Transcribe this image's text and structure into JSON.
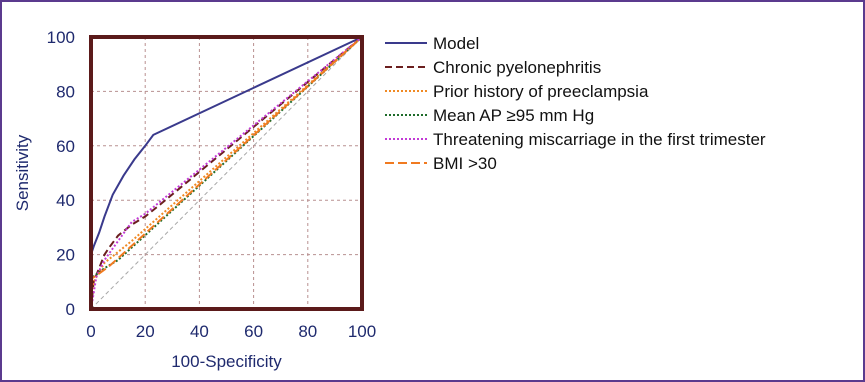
{
  "chart_data": {
    "type": "line",
    "title": "",
    "xlabel": "100-Specificity",
    "ylabel": "Sensitivity",
    "xlim": [
      0,
      100
    ],
    "ylim": [
      0,
      100
    ],
    "x_ticks": [
      0,
      20,
      40,
      60,
      80,
      100
    ],
    "y_ticks": [
      0,
      20,
      40,
      60,
      80,
      100
    ],
    "grid": true,
    "legend_position": "right",
    "reference_line": {
      "x": [
        0,
        100
      ],
      "y": [
        0,
        100
      ],
      "color": "#a8a8a8"
    },
    "series": [
      {
        "name": "Model",
        "color": "#3a3a8c",
        "dash": "solid",
        "x": [
          0,
          0,
          1,
          3,
          5,
          8,
          12,
          16,
          20,
          23,
          100
        ],
        "y": [
          0,
          20,
          23,
          28,
          34,
          42,
          49,
          55,
          60,
          64,
          100
        ]
      },
      {
        "name": "Chronic pyelonephritis",
        "color": "#6b1f1f",
        "dash": "dashed",
        "x": [
          0,
          1,
          3,
          5,
          7,
          10,
          15,
          20,
          25,
          100
        ],
        "y": [
          0,
          10,
          15,
          20,
          23,
          27,
          31,
          34,
          38,
          100
        ]
      },
      {
        "name": "Prior history of preeclampsia",
        "color": "#f08a24",
        "dash": "dotted",
        "x": [
          0,
          1,
          5,
          10,
          15,
          100
        ],
        "y": [
          0,
          10,
          17,
          21,
          25,
          100
        ]
      },
      {
        "name": "Mean AP ≥95 mm Hg",
        "color": "#1e6b2a",
        "dash": "dotted",
        "x": [
          0,
          0,
          1,
          5,
          10,
          100
        ],
        "y": [
          0,
          10,
          12,
          15,
          18,
          100
        ]
      },
      {
        "name": "Threatening miscarriage in the first trimester",
        "color": "#c23ad6",
        "dash": "dotted",
        "x": [
          0,
          2,
          5,
          10,
          15,
          20,
          100
        ],
        "y": [
          0,
          12,
          18,
          25,
          32,
          35,
          100
        ]
      },
      {
        "name": "BMI >30",
        "color": "#f07a20",
        "dash": "longdash",
        "x": [
          0,
          0,
          3,
          7,
          100
        ],
        "y": [
          0,
          11,
          13,
          16,
          100
        ]
      }
    ]
  }
}
